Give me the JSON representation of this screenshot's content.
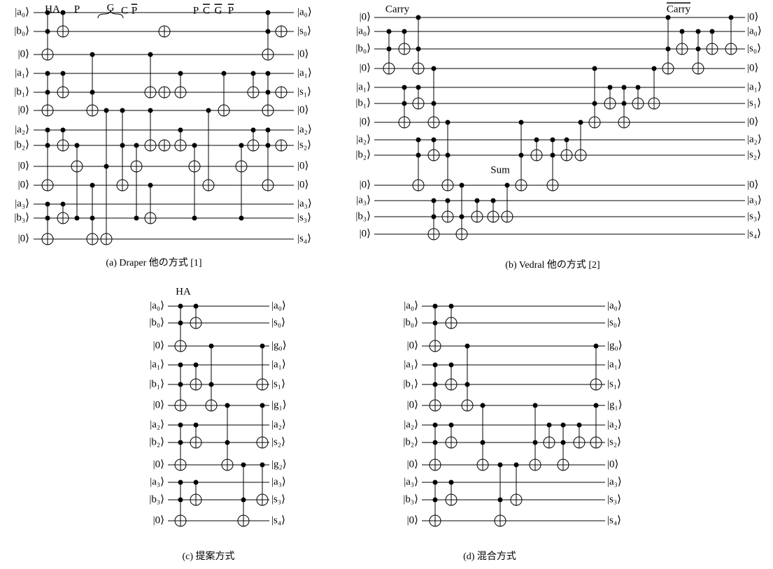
{
  "panels": [
    {
      "caption": "(a) Draper 他の方式 [1]",
      "inputs": [
        "|a₀⟩",
        "|b₀⟩",
        "|0⟩",
        "|a₁⟩",
        "|b₁⟩",
        "|0⟩",
        "|a₂⟩",
        "|b₂⟩",
        "|0⟩",
        "|0⟩",
        "|a₃⟩",
        "|b₃⟩",
        "|0⟩"
      ],
      "outputs": [
        "|a₀⟩",
        "|s₀⟩",
        "|0⟩",
        "|a₁⟩",
        "|s₁⟩",
        "|0⟩",
        "|a₂⟩",
        "|s₂⟩",
        "|0⟩",
        "|0⟩",
        "|a₃⟩",
        "|s₃⟩",
        "|s₄⟩"
      ],
      "annotations": [
        "HA",
        "P",
        "G",
        "C",
        "P",
        "P",
        "C",
        "G",
        "P"
      ]
    },
    {
      "caption": "(b) Vedral 他の方式 [2]",
      "inputs": [
        "|0⟩",
        "|a₀⟩",
        "|b₀⟩",
        "|0⟩",
        "|a₁⟩",
        "|b₁⟩",
        "|0⟩",
        "|a₂⟩",
        "|b₂⟩",
        "|0⟩",
        "|a₃⟩",
        "|b₃⟩",
        "|0⟩"
      ],
      "outputs": [
        "|0⟩",
        "|a₀⟩",
        "|s₀⟩",
        "|0⟩",
        "|a₁⟩",
        "|s₁⟩",
        "|0⟩",
        "|a₂⟩",
        "|s₂⟩",
        "|0⟩",
        "|a₃⟩",
        "|s₃⟩",
        "|s₄⟩"
      ],
      "annotations": [
        "Carry",
        "Sum",
        "Carry"
      ]
    },
    {
      "caption": "(c) 提案方式",
      "inputs": [
        "|a₀⟩",
        "|b₀⟩",
        "|0⟩",
        "|a₁⟩",
        "|b₁⟩",
        "|0⟩",
        "|a₂⟩",
        "|b₂⟩",
        "|0⟩",
        "|a₃⟩",
        "|b₃⟩",
        "|0⟩"
      ],
      "outputs": [
        "|a₀⟩",
        "|s₀⟩",
        "|g₀⟩",
        "|a₁⟩",
        "|s₁⟩",
        "|g₁⟩",
        "|a₂⟩",
        "|s₂⟩",
        "|g₂⟩",
        "|a₃⟩",
        "|s₃⟩",
        "|s₄⟩"
      ],
      "annotations": [
        "HA"
      ]
    },
    {
      "caption": "(d) 混合方式",
      "inputs": [
        "|a₀⟩",
        "|b₀⟩",
        "|0⟩",
        "|a₁⟩",
        "|b₁⟩",
        "|0⟩",
        "|a₂⟩",
        "|b₂⟩",
        "|0⟩",
        "|a₃⟩",
        "|b₃⟩",
        "|0⟩"
      ],
      "outputs": [
        "|a₀⟩",
        "|s₀⟩",
        "|g₀⟩",
        "|a₁⟩",
        "|s₁⟩",
        "|g₁⟩",
        "|a₂⟩",
        "|s₂⟩",
        "|0⟩",
        "|a₃⟩",
        "|s₃⟩",
        "|s₄⟩"
      ],
      "annotations": []
    }
  ]
}
